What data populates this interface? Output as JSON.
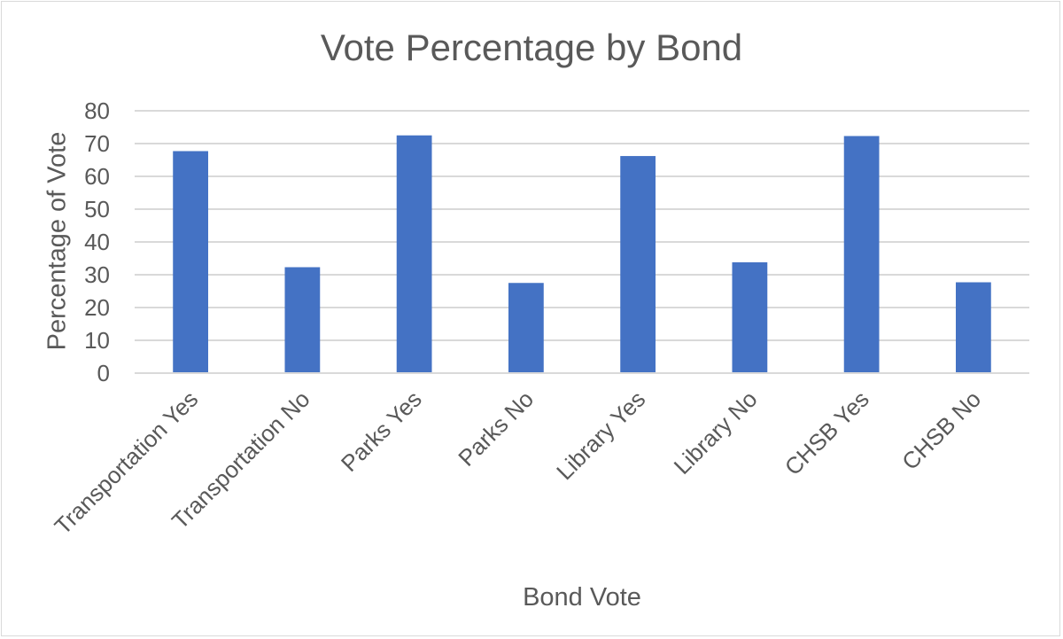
{
  "chart_data": {
    "type": "bar",
    "title": "Vote Percentage by Bond",
    "xlabel": "Bond Vote",
    "ylabel": "Percentage of Vote",
    "categories": [
      "Transportation Yes",
      "Transportation No",
      "Parks Yes",
      "Parks No",
      "Library Yes",
      "Library No",
      "CHSB Yes",
      "CHSB No"
    ],
    "values": [
      67.7,
      32.3,
      72.5,
      27.5,
      66.2,
      33.8,
      72.3,
      27.7
    ],
    "ylim": [
      0,
      80
    ],
    "yticks": [
      0,
      10,
      20,
      30,
      40,
      50,
      60,
      70,
      80
    ],
    "grid": true,
    "legend": "none",
    "bar_color": "#4472c4",
    "grid_color": "#d9d9d9",
    "text_color": "#595959"
  }
}
